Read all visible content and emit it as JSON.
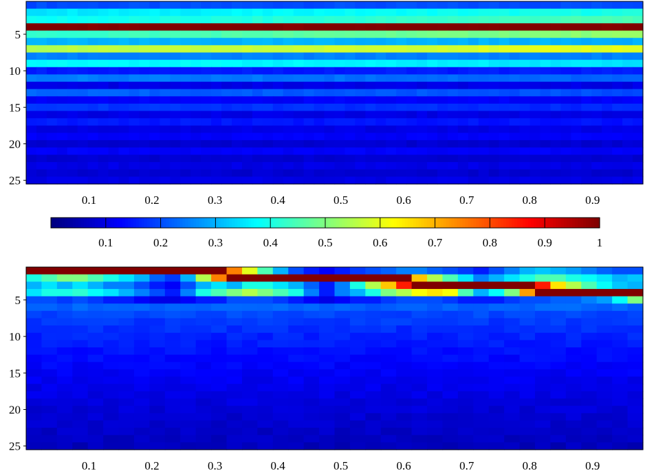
{
  "chart_data": [
    {
      "type": "heatmap",
      "x_range": [
        0,
        0.98
      ],
      "y_range": [
        0.5,
        25.5
      ],
      "y_inverted": true,
      "rows": 25,
      "x_ticks": [
        0.1,
        0.2,
        0.3,
        0.4,
        0.5,
        0.6,
        0.7,
        0.8,
        0.9
      ],
      "x_tick_labels": [
        "0.1",
        "0.2",
        "0.3",
        "0.4",
        "0.5",
        "0.6",
        "0.7",
        "0.8",
        "0.9"
      ],
      "y_ticks": [
        5,
        10,
        15,
        20,
        25
      ],
      "y_tick_labels": [
        "5",
        "10",
        "15",
        "20",
        "25"
      ],
      "colormap": "jet",
      "color_range": [
        0,
        1
      ],
      "row_values_start": [
        0.2,
        0.35,
        0.38,
        1.0,
        0.42,
        0.3,
        0.55,
        0.25,
        0.38,
        0.15,
        0.25,
        0.1,
        0.22,
        0.12,
        0.18,
        0.1,
        0.15,
        0.1,
        0.12,
        0.08,
        0.12,
        0.08,
        0.1,
        0.08,
        0.1
      ],
      "row_values_end": [
        0.2,
        0.4,
        0.45,
        1.0,
        0.52,
        0.3,
        0.6,
        0.25,
        0.35,
        0.15,
        0.22,
        0.1,
        0.2,
        0.12,
        0.16,
        0.1,
        0.14,
        0.1,
        0.12,
        0.08,
        0.12,
        0.08,
        0.1,
        0.08,
        0.1
      ]
    },
    {
      "type": "colorbar",
      "colormap": "jet",
      "range": [
        0,
        1
      ],
      "ticks": [
        0.1,
        0.2,
        0.3,
        0.4,
        0.5,
        0.6,
        0.7,
        0.8,
        0.9,
        1
      ],
      "tick_labels": [
        "0.1",
        "0.2",
        "0.3",
        "0.4",
        "0.5",
        "0.6",
        "0.7",
        "0.8",
        "0.9",
        "1"
      ]
    },
    {
      "type": "heatmap",
      "x_range": [
        0,
        0.98
      ],
      "y_range": [
        0.5,
        25.5
      ],
      "y_inverted": true,
      "columns": 40,
      "rows": 25,
      "x_ticks": [
        0.1,
        0.2,
        0.3,
        0.4,
        0.5,
        0.6,
        0.7,
        0.8,
        0.9
      ],
      "x_tick_labels": [
        "0.1",
        "0.2",
        "0.3",
        "0.4",
        "0.5",
        "0.6",
        "0.7",
        "0.8",
        "0.9"
      ],
      "y_ticks": [
        5,
        10,
        15,
        20,
        25
      ],
      "y_tick_labels": [
        "5",
        "10",
        "15",
        "20",
        "25"
      ],
      "colormap": "jet",
      "color_range": [
        0,
        1
      ],
      "column_values_top5": [
        [
          1,
          0.4,
          0.3,
          0.35,
          0.2
        ],
        [
          1,
          0.45,
          0.35,
          0.4,
          0.2
        ],
        [
          1,
          0.5,
          0.3,
          0.4,
          0.18
        ],
        [
          1,
          0.5,
          0.35,
          0.42,
          0.2
        ],
        [
          1,
          0.45,
          0.3,
          0.38,
          0.18
        ],
        [
          1,
          0.4,
          0.25,
          0.35,
          0.15
        ],
        [
          1,
          0.35,
          0.25,
          0.3,
          0.15
        ],
        [
          1,
          0.3,
          0.2,
          0.25,
          0.12
        ],
        [
          1,
          0.22,
          0.15,
          0.2,
          0.1
        ],
        [
          1,
          0.18,
          0.12,
          0.15,
          0.1
        ],
        [
          1,
          0.3,
          0.2,
          0.25,
          0.12
        ],
        [
          1,
          0.55,
          0.3,
          0.4,
          0.15
        ],
        [
          1,
          0.75,
          0.35,
          0.45,
          0.15
        ],
        [
          0.75,
          1,
          0.3,
          0.5,
          0.2
        ],
        [
          0.6,
          1,
          0.4,
          0.55,
          0.2
        ],
        [
          0.45,
          1,
          0.4,
          0.5,
          0.2
        ],
        [
          0.3,
          1,
          0.35,
          0.45,
          0.18
        ],
        [
          0.2,
          1,
          0.3,
          0.4,
          0.15
        ],
        [
          0.15,
          1,
          0.22,
          0.25,
          0.12
        ],
        [
          0.12,
          1,
          0.15,
          0.15,
          0.1
        ],
        [
          0.15,
          1,
          0.25,
          0.25,
          0.12
        ],
        [
          0.18,
          1,
          0.4,
          0.3,
          0.15
        ],
        [
          0.2,
          1,
          0.55,
          0.4,
          0.15
        ],
        [
          0.22,
          1,
          0.68,
          0.5,
          0.18
        ],
        [
          0.25,
          1,
          0.85,
          0.55,
          0.2
        ],
        [
          0.25,
          0.68,
          1,
          0.62,
          0.2
        ],
        [
          0.22,
          0.55,
          1,
          0.65,
          0.2
        ],
        [
          0.2,
          0.45,
          1,
          0.62,
          0.18
        ],
        [
          0.18,
          0.35,
          1,
          0.45,
          0.15
        ],
        [
          0.15,
          0.25,
          1,
          0.3,
          0.15
        ],
        [
          0.2,
          0.3,
          1,
          0.38,
          0.15
        ],
        [
          0.25,
          0.35,
          1,
          0.5,
          0.18
        ],
        [
          0.3,
          0.4,
          1,
          0.72,
          0.2
        ],
        [
          0.32,
          0.45,
          0.85,
          1,
          0.2
        ],
        [
          0.3,
          0.45,
          0.65,
          1,
          0.22
        ],
        [
          0.28,
          0.4,
          0.55,
          1,
          0.22
        ],
        [
          0.25,
          0.38,
          0.45,
          1,
          0.25
        ],
        [
          0.22,
          0.35,
          0.38,
          1,
          0.28
        ],
        [
          0.2,
          0.3,
          0.32,
          1,
          0.38
        ],
        [
          0.2,
          0.32,
          0.3,
          1,
          0.5
        ]
      ],
      "lower_rows_value_range": [
        0.06,
        0.22
      ]
    }
  ]
}
